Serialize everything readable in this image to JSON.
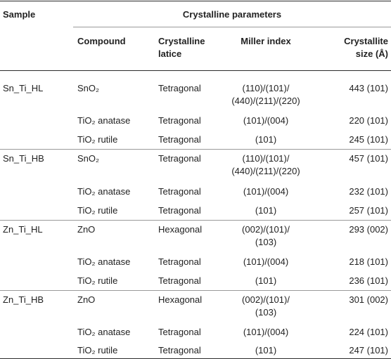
{
  "table": {
    "header": {
      "sample": "Sample",
      "group": "Crystalline parameters",
      "compound": "Compound",
      "latice_line1": "Crystalline",
      "latice_line2": "latice",
      "miller": "Miller index",
      "size_line1": "Crystallite",
      "size_line2": "size (Å)"
    },
    "rows": [
      {
        "sample": "Sn_Ti_HL",
        "compound": "SnO₂",
        "latice": "Tetragonal",
        "miller1": "(110)/(101)/",
        "miller2": "(440)/(211)/(220)",
        "size": "443 (101)"
      },
      {
        "sample": "",
        "compound": "TiO₂ anatase",
        "latice": "Tetragonal",
        "miller1": "(101)/(004)",
        "miller2": "",
        "size": "220 (101)"
      },
      {
        "sample": "",
        "compound": "TiO₂ rutile",
        "latice": "Tetragonal",
        "miller1": "(101)",
        "miller2": "",
        "size": "245 (101)"
      },
      {
        "sample": "Sn_Ti_HB",
        "compound": "SnO₂",
        "latice": "Tetragonal",
        "miller1": "(110)/(101)/",
        "miller2": "(440)/(211)/(220)",
        "size": "457 (101)"
      },
      {
        "sample": "",
        "compound": "TiO₂ anatase",
        "latice": "Tetragonal",
        "miller1": "(101)/(004)",
        "miller2": "",
        "size": "232 (101)"
      },
      {
        "sample": "",
        "compound": "TiO₂ rutile",
        "latice": "Tetragonal",
        "miller1": "(101)",
        "miller2": "",
        "size": "257 (101)"
      },
      {
        "sample": "Zn_Ti_HL",
        "compound": "ZnO",
        "latice": "Hexagonal",
        "miller1": "(002)/(101)/",
        "miller2": "(103)",
        "size": "293 (002)"
      },
      {
        "sample": "",
        "compound": "TiO₂ anatase",
        "latice": "Tetragonal",
        "miller1": "(101)/(004)",
        "miller2": "",
        "size": "218 (101)"
      },
      {
        "sample": "",
        "compound": "TiO₂ rutile",
        "latice": "Tetragonal",
        "miller1": "(101)",
        "miller2": "",
        "size": "236 (101)"
      },
      {
        "sample": "Zn_Ti_HB",
        "compound": "ZnO",
        "latice": "Hexagonal",
        "miller1": "(002)/(101)/",
        "miller2": "(103)",
        "size": "301 (002)"
      },
      {
        "sample": "",
        "compound": "TiO₂ anatase",
        "latice": "Tetragonal",
        "miller1": "(101)/(004)",
        "miller2": "",
        "size": "224 (101)"
      },
      {
        "sample": "",
        "compound": "TiO₂ rutile",
        "latice": "Tetragonal",
        "miller1": "(101)",
        "miller2": "",
        "size": "247 (101)"
      }
    ]
  }
}
